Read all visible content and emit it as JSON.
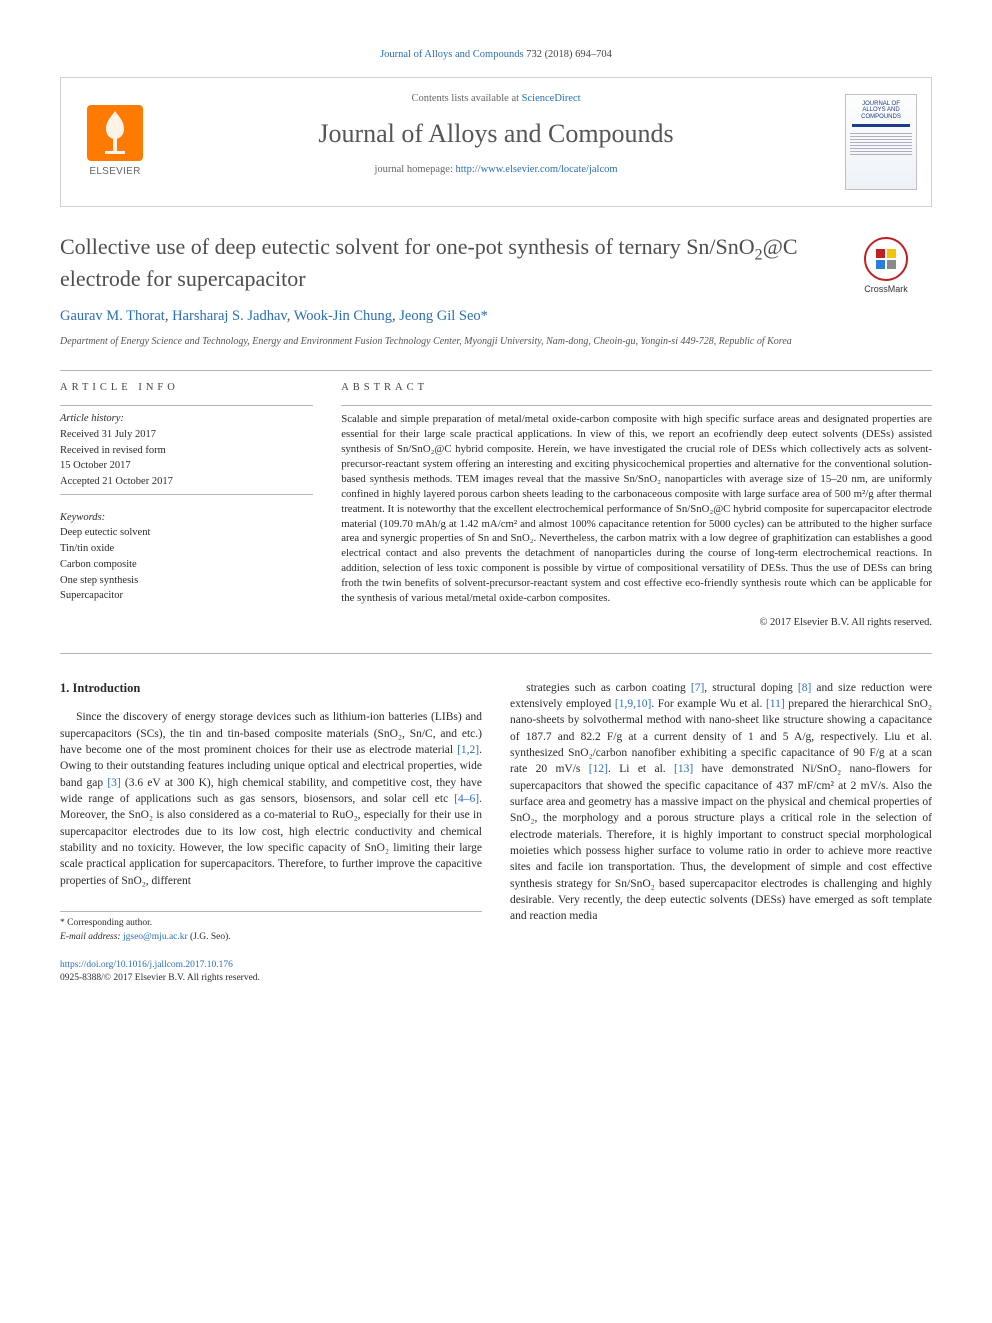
{
  "citation": {
    "journal": "Journal of Alloys and Compounds",
    "vol_issue": "732 (2018) 694–704"
  },
  "masthead": {
    "contents_prefix": "Contents lists available at ",
    "contents_link": "ScienceDirect",
    "journal_name": "Journal of Alloys and Compounds",
    "homepage_prefix": "journal homepage: ",
    "homepage_url": "http://www.elsevier.com/locate/jalcom",
    "elsevier_label": "ELSEVIER",
    "cover_title": "JOURNAL OF ALLOYS AND COMPOUNDS"
  },
  "article": {
    "title_pre": "Collective use of deep eutectic solvent for one-pot synthesis of ternary Sn/SnO",
    "title_sub": "2",
    "title_post": "@C electrode for supercapacitor",
    "crossmark": "CrossMark"
  },
  "authors": {
    "a1": "Gaurav M. Thorat",
    "a2": "Harsharaj S. Jadhav",
    "a3": "Wook-Jin Chung",
    "a4": "Jeong Gil Seo",
    "corr": "*"
  },
  "affiliation": "Department of Energy Science and Technology, Energy and Environment Fusion Technology Center, Myongji University, Nam-dong, Cheoin-gu, Yongin-si 449-728, Republic of Korea",
  "info": {
    "head": "ARTICLE INFO",
    "history_head": "Article history:",
    "received": "Received 31 July 2017",
    "revised1": "Received in revised form",
    "revised2": "15 October 2017",
    "accepted": "Accepted 21 October 2017",
    "kw_head": "Keywords:",
    "kw": [
      "Deep eutectic solvent",
      "Tin/tin oxide",
      "Carbon composite",
      "One step synthesis",
      "Supercapacitor"
    ]
  },
  "abstract": {
    "head": "ABSTRACT",
    "text": "Scalable and simple preparation of metal/metal oxide-carbon composite with high specific surface areas and designated properties are essential for their large scale practical applications. In view of this, we report an ecofriendly deep eutect solvents (DESs) assisted synthesis of Sn/SnO₂@C hybrid composite. Herein, we have investigated the crucial role of DESs which collectively acts as solvent-precursor-reactant system offering an interesting and exciting physicochemical properties and alternative for the conventional solution-based synthesis methods. TEM images reveal that the massive Sn/SnO₂ nanoparticles with average size of 15–20 nm, are uniformly confined in highly layered porous carbon sheets leading to the carbonaceous composite with large surface area of 500 m²/g after thermal treatment. It is noteworthy that the excellent electrochemical performance of Sn/SnO₂@C hybrid composite for supercapacitor electrode material (109.70 mAh/g at 1.42 mA/cm² and almost 100% capacitance retention for 5000 cycles) can be attributed to the higher surface area and synergic properties of Sn and SnO₂. Nevertheless, the carbon matrix with a low degree of graphitization can establishes a good electrical contact and also prevents the detachment of nanoparticles during the course of long-term electrochemical reactions. In addition, selection of less toxic component is possible by virtue of compositional versatility of DESs. Thus the use of DESs can bring froth the twin benefits of solvent-precursor-reactant system and cost effective eco-friendly synthesis route which can be applicable for the synthesis of various metal/metal oxide-carbon composites.",
    "copyright": "© 2017 Elsevier B.V. All rights reserved."
  },
  "intro": {
    "head": "1. Introduction",
    "col1_html": "Since the discovery of energy storage devices such as lithium-ion batteries (LIBs) and supercapacitors (SCs), the tin and tin-based composite materials (SnO₂, Sn/C, and etc.) have become one of the most prominent choices for their use as electrode material <a class='ref' data-name='ref-link' data-interactable='true'>[1,2]</a>. Owing to their outstanding features including unique optical and electrical properties, wide band gap <a class='ref' data-name='ref-link' data-interactable='true'>[3]</a> (3.6 eV at 300 K), high chemical stability, and competitive cost, they have wide range of applications such as gas sensors, biosensors, and solar cell etc <a class='ref' data-name='ref-link' data-interactable='true'>[4–6]</a>. Moreover, the SnO₂ is also considered as a co-material to RuO₂, especially for their use in supercapacitor electrodes due to its low cost, high electric conductivity and chemical stability and no toxicity. However, the low specific capacity of SnO₂ limiting their large scale practical application for supercapacitors. Therefore, to further improve the capacitive properties of SnO₂, different",
    "col2_html": "strategies such as carbon coating <a class='ref' data-name='ref-link' data-interactable='true'>[7]</a>, structural doping <a class='ref' data-name='ref-link' data-interactable='true'>[8]</a> and size reduction were extensively employed <a class='ref' data-name='ref-link' data-interactable='true'>[1,9,10]</a>. For example Wu et al. <a class='ref' data-name='ref-link' data-interactable='true'>[11]</a> prepared the hierarchical SnO₂ nano-sheets by solvothermal method with nano-sheet like structure showing a capacitance of 187.7 and 82.2 F/g at a current density of 1 and 5 A/g, respectively. Liu et al. synthesized SnO₂/carbon nanofiber exhibiting a specific capacitance of 90 F/g at a scan rate 20 mV/s <a class='ref' data-name='ref-link' data-interactable='true'>[12]</a>. Li et al. <a class='ref' data-name='ref-link' data-interactable='true'>[13]</a> have demonstrated Ni/SnO₂ nano-flowers for supercapacitors that showed the specific capacitance of 437 mF/cm² at 2 mV/s. Also the surface area and geometry has a massive impact on the physical and chemical properties of SnO₂, the morphology and a porous structure plays a critical role in the selection of electrode materials. Therefore, it is highly important to construct special morphological moieties which possess higher surface to volume ratio in order to achieve more reactive sites and facile ion transportation. Thus, the development of simple and cost effective synthesis strategy for Sn/SnO₂ based supercapacitor electrodes is challenging and highly desirable. Very recently, the deep eutectic solvents (DESs) have emerged as soft template and reaction media"
  },
  "footnotes": {
    "corr": "* Corresponding author.",
    "email_label": "E-mail address:",
    "email": "jgseo@mju.ac.kr",
    "email_name": " (J.G. Seo)."
  },
  "doi": {
    "url": "https://doi.org/10.1016/j.jallcom.2017.10.176",
    "issn_line": "0925-8388/© 2017 Elsevier B.V. All rights reserved."
  },
  "colors": {
    "link": "#2b6fb5",
    "text": "#2a2a2a",
    "muted": "#666666",
    "rule": "#b6b6b6",
    "elsevier_orange": "#ff7a00",
    "crossmark_ring": "#c02020"
  }
}
